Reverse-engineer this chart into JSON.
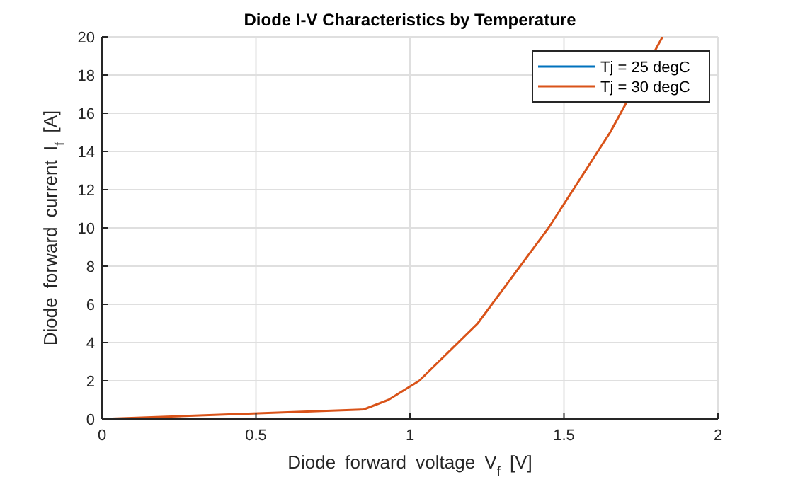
{
  "chart_data": {
    "type": "line",
    "title": "Diode I-V Characteristics by Temperature",
    "xlabel": "Diode forward voltage V$_{f}$ [V]",
    "ylabel": "Diode forward current I$_{f}$ [A]",
    "x": [
      0,
      0.85,
      0.93,
      1.03,
      1.22,
      1.45,
      1.65,
      1.82
    ],
    "series": [
      {
        "name": "Tj = 25 degC",
        "color": "#0072bd",
        "values": [
          null,
          null,
          null,
          null,
          null,
          null,
          null,
          null
        ]
      },
      {
        "name": "Tj = 30 degC",
        "color": "#d95319",
        "values": [
          0,
          0.5,
          1,
          2,
          5,
          10,
          15,
          20
        ]
      }
    ],
    "xlim": [
      0,
      2
    ],
    "xticks": [
      0,
      0.5,
      1,
      1.5,
      2
    ],
    "ylim": [
      0,
      20
    ],
    "yticks": [
      0,
      2,
      4,
      6,
      8,
      10,
      12,
      14,
      16,
      18,
      20
    ],
    "grid": true,
    "legend": "top right",
    "marker": "none",
    "line_style": "solid"
  }
}
